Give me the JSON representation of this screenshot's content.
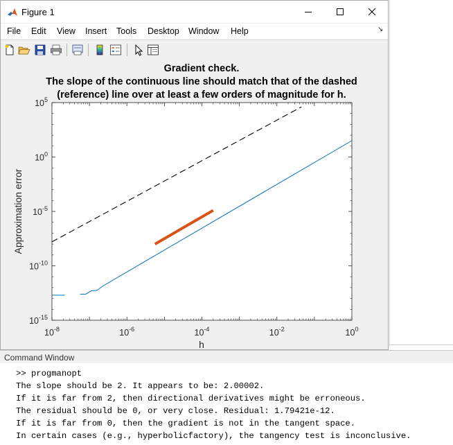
{
  "window": {
    "title": "Figure 1",
    "menus": [
      "File",
      "Edit",
      "View",
      "Insert",
      "Tools",
      "Desktop",
      "Window",
      "Help"
    ]
  },
  "toolbar": {
    "icons": [
      "new-figure-icon",
      "open-file-icon",
      "save-icon",
      "print-icon",
      "print-preview-icon",
      "insert-colorbar-icon",
      "insert-legend-icon",
      "edit-plot-icon",
      "property-inspector-icon"
    ]
  },
  "plot": {
    "title_line1": "Gradient check.",
    "title_line2": "The slope of the continuous line should match that of the dashed",
    "title_line3": "(reference) line over at least a few orders of magnitude for h.",
    "xlabel": "h",
    "ylabel": "Approximation error"
  },
  "chart_data": {
    "type": "line",
    "title": "Gradient check. The slope of the continuous line should match that of the dashed (reference) line over at least a few orders of magnitude for h.",
    "xlabel": "h",
    "ylabel": "Approximation error",
    "xscale": "log",
    "yscale": "log",
    "xlim": [
      1e-08,
      1
    ],
    "ylim": [
      1e-15,
      100000.0
    ],
    "xticks": [
      {
        "base": "10",
        "exp": "-8"
      },
      {
        "base": "10",
        "exp": "-6"
      },
      {
        "base": "10",
        "exp": "-4"
      },
      {
        "base": "10",
        "exp": "-2"
      },
      {
        "base": "10",
        "exp": "0"
      }
    ],
    "yticks": [
      {
        "base": "10",
        "exp": "-15"
      },
      {
        "base": "10",
        "exp": "-10"
      },
      {
        "base": "10",
        "exp": "-5"
      },
      {
        "base": "10",
        "exp": "0"
      },
      {
        "base": "10",
        "exp": "5"
      }
    ],
    "grid": false,
    "series": [
      {
        "style": "solid",
        "color": "#0072bd",
        "segments": [
          [
            [
              1e-08,
              2e-13
            ],
            [
              2.2e-08,
              2e-13
            ]
          ],
          [
            [
              5.6e-08,
              2.5e-13
            ],
            [
              8e-08,
              2.5e-13
            ],
            [
              1.1e-07,
              5e-13
            ],
            [
              1.6e-07,
              5.6e-13
            ],
            [
              2.2e-07,
              1.3e-12
            ],
            [
              1,
              32.0
            ]
          ]
        ]
      },
      {
        "style": "dashed",
        "color": "#000000",
        "points": [
          [
            1e-08,
            1.6e-08
          ],
          [
            0.045,
            40000.0
          ]
        ]
      },
      {
        "style": "highlight",
        "color": "#d95319",
        "points": [
          [
            5.6e-06,
            1e-08
          ],
          [
            0.0002,
            1.25e-05
          ]
        ]
      }
    ]
  },
  "command_window": {
    "title": "Command Window",
    "lines": [
      ">> progmanopt",
      "The slope should be 2. It appears to be: 2.00002.",
      "If it is far from 2, then directional derivatives might be erroneous.",
      "The residual should be 0, or very close. Residual: 1.79421e-12.",
      "If it is far from 0, then the gradient is not in the tangent space.",
      "In certain cases (e.g., hyperbolicfactory), the tangency test is inconclusive."
    ]
  }
}
